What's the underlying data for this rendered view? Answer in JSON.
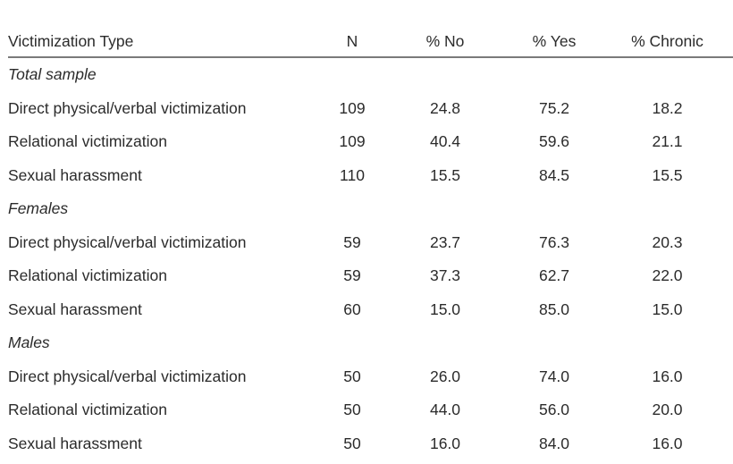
{
  "table": {
    "headers": [
      "Victimization Type",
      "N",
      "% No",
      "% Yes",
      "% Chronic"
    ],
    "sections": [
      {
        "title": "Total sample",
        "rows": [
          [
            "Direct physical/verbal victimization",
            "109",
            "24.8",
            "75.2",
            "18.2"
          ],
          [
            "Relational victimization",
            "109",
            "40.4",
            "59.6",
            "21.1"
          ],
          [
            "Sexual harassment",
            "110",
            "15.5",
            "84.5",
            "15.5"
          ]
        ]
      },
      {
        "title": "Females",
        "rows": [
          [
            "Direct physical/verbal victimization",
            "59",
            "23.7",
            "76.3",
            "20.3"
          ],
          [
            "Relational victimization",
            "59",
            "37.3",
            "62.7",
            "22.0"
          ],
          [
            "Sexual harassment",
            "60",
            "15.0",
            "85.0",
            "15.0"
          ]
        ]
      },
      {
        "title": "Males",
        "rows": [
          [
            "Direct physical/verbal victimization",
            "50",
            "26.0",
            "74.0",
            "16.0"
          ],
          [
            "Relational victimization",
            "50",
            "44.0",
            "56.0",
            "20.0"
          ],
          [
            "Sexual harassment",
            "50",
            "16.0",
            "84.0",
            "16.0"
          ]
        ]
      }
    ]
  }
}
